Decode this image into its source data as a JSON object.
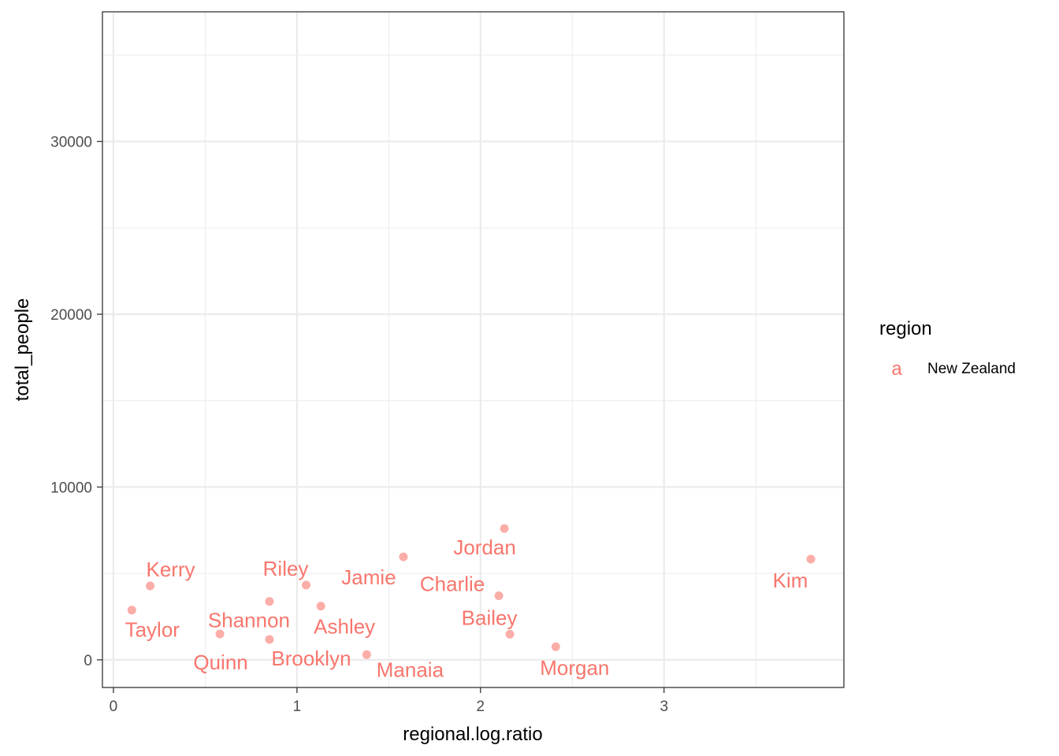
{
  "chart_data": {
    "type": "scatter",
    "xlabel": "regional.log.ratio",
    "ylabel": "total_people",
    "xlim": [
      -0.06,
      3.98
    ],
    "ylim": [
      -1600,
      37500
    ],
    "x_ticks": [
      0,
      1,
      2,
      3
    ],
    "y_ticks": [
      0,
      10000,
      20000,
      30000
    ],
    "grid": true,
    "legend": {
      "title": "region",
      "key_glyph": "a",
      "placement": "right"
    },
    "series": [
      {
        "name": "New Zealand",
        "color": "#F8766D",
        "points": [
          {
            "label": "Taylor",
            "x": 0.1,
            "y": 2880
          },
          {
            "label": "Kerry",
            "x": 0.2,
            "y": 4280
          },
          {
            "label": "Quinn",
            "x": 0.58,
            "y": 1500
          },
          {
            "label": "Shannon",
            "x": 0.85,
            "y": 3380
          },
          {
            "label": "Brooklyn",
            "x": 0.85,
            "y": 1180
          },
          {
            "label": "Riley",
            "x": 1.05,
            "y": 4330
          },
          {
            "label": "Ashley",
            "x": 1.13,
            "y": 3110
          },
          {
            "label": "Manaia",
            "x": 1.38,
            "y": 300
          },
          {
            "label": "Jamie",
            "x": 1.58,
            "y": 5960
          },
          {
            "label": "Charlie",
            "x": 2.1,
            "y": 3710
          },
          {
            "label": "Jordan",
            "x": 2.13,
            "y": 7600
          },
          {
            "label": "Bailey",
            "x": 2.16,
            "y": 1480
          },
          {
            "label": "Morgan",
            "x": 2.41,
            "y": 760
          },
          {
            "label": "Kim",
            "x": 3.8,
            "y": 5830
          }
        ]
      }
    ]
  }
}
